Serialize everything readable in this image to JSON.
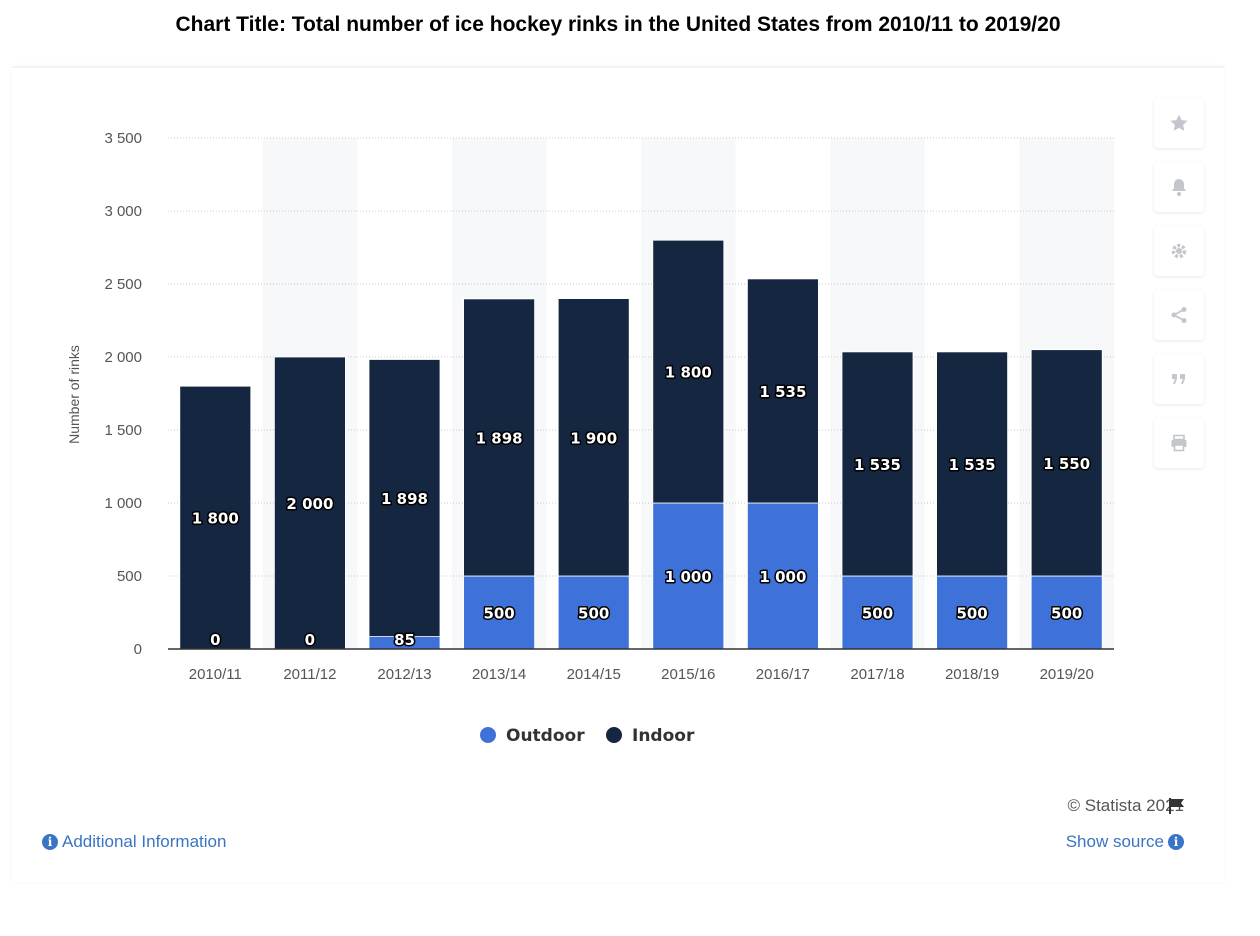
{
  "page": {
    "title": "Chart Title: Total number of ice hockey rinks in the United States from 2010/11 to 2019/20"
  },
  "toolbar": {
    "icons": [
      "star-icon",
      "bell-icon",
      "gear-icon",
      "share-icon",
      "quote-icon",
      "print-icon"
    ]
  },
  "footer": {
    "copyright": "© Statista 2021",
    "additional_info": "Additional Information",
    "show_source": "Show source"
  },
  "colors": {
    "outdoor": "#3f72d8",
    "indoor": "#152640",
    "grid": "#c9c9c9",
    "axis_text": "#555555"
  },
  "chart_data": {
    "type": "bar",
    "stacked": true,
    "categories": [
      "2010/11",
      "2011/12",
      "2012/13",
      "2013/14",
      "2014/15",
      "2015/16",
      "2016/17",
      "2017/18",
      "2018/19",
      "2019/20"
    ],
    "series": [
      {
        "name": "Outdoor",
        "values": [
          0,
          0,
          85,
          500,
          500,
          1000,
          1000,
          500,
          500,
          500
        ]
      },
      {
        "name": "Indoor",
        "values": [
          1800,
          2000,
          1898,
          1898,
          1900,
          1800,
          1535,
          1535,
          1535,
          1550
        ]
      }
    ],
    "data_labels": {
      "Outdoor": [
        "0",
        "0",
        "85",
        "500",
        "500",
        "1 000",
        "1 000",
        "500",
        "500",
        "500"
      ],
      "Indoor": [
        "1 800",
        "2 000",
        "1 898",
        "1 898",
        "1 900",
        "1 800",
        "1 535",
        "1 535",
        "1 535",
        "1 550"
      ]
    },
    "ylabel": "Number of rinks",
    "xlabel": "",
    "ylim": [
      0,
      3500
    ],
    "yticks": [
      0,
      500,
      1000,
      1500,
      2000,
      2500,
      3000,
      3500
    ],
    "ytick_labels": [
      "0",
      "500",
      "1 000",
      "1 500",
      "2 000",
      "2 500",
      "3 000",
      "3 500"
    ],
    "grid": true,
    "legend": {
      "position": "bottom-center",
      "entries": [
        "Outdoor",
        "Indoor"
      ]
    }
  }
}
